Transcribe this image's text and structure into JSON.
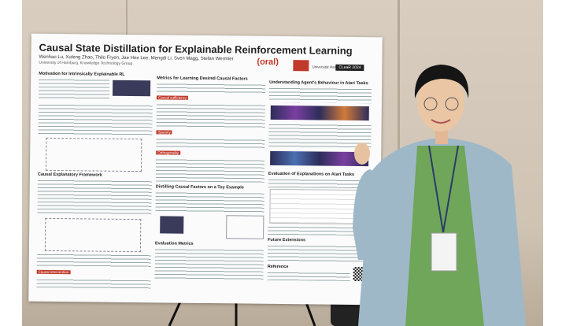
{
  "poster": {
    "title": "Causal State Distillation for Explainable Reinforcement Learning",
    "oral": "(oral)",
    "authors": "Wenhao Lu, Xufeng Zhao, Thilo Fryen, Jae Hee Lee, Mengdi Li, Sven Magg, Stefan Wermter",
    "affiliation": "University of Hamburg, Knowledge Technology Group",
    "university": "Universität Hamburg",
    "conference": "CLeaR 2024",
    "sections": [
      "Motivation for Intrinsically Explainable RL",
      "Causal Explanatory Framework",
      "Metrics for Learning Desired Causal Factors",
      "Distilling Causal Factors on a Toy Example",
      "Evaluation Metrics",
      "Understanding Agent's Behaviour in Atari Tasks",
      "Evaluation of Explanations on Atari Tasks",
      "Future Extensions",
      "Reference"
    ],
    "labels": [
      "Causal sufficiency",
      "Sparsity",
      "Orthogonality",
      "Causal intervention"
    ]
  }
}
